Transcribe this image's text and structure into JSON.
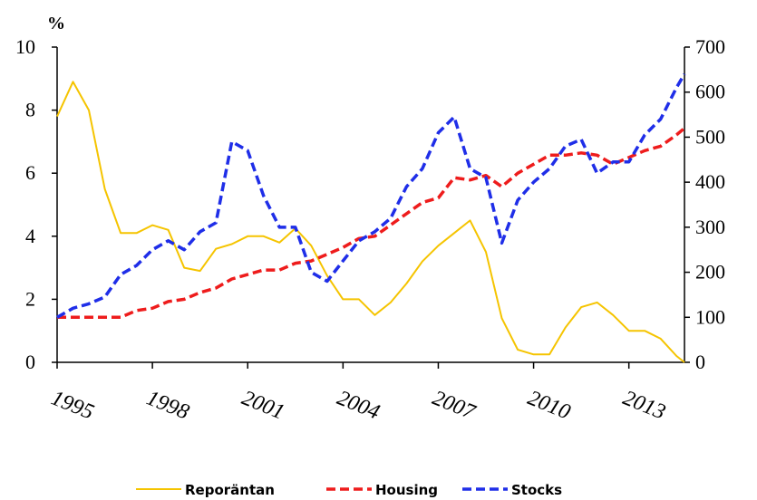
{
  "chart_data": {
    "type": "line",
    "ylabel": "%",
    "x": [
      1995,
      1995.5,
      1996,
      1996.5,
      1997,
      1997.5,
      1998,
      1998.5,
      1999,
      1999.5,
      2000,
      2000.5,
      2001,
      2001.5,
      2002,
      2002.5,
      2003,
      2003.5,
      2004,
      2004.5,
      2005,
      2005.5,
      2006,
      2006.5,
      2007,
      2007.5,
      2008,
      2008.5,
      2009,
      2009.5,
      2010,
      2010.5,
      2011,
      2011.5,
      2012,
      2012.5,
      2013,
      2013.5,
      2014,
      2014.5,
      2014.75
    ],
    "xlim": [
      1995,
      2014.75
    ],
    "xticks": [
      1995,
      1998,
      2001,
      2004,
      2007,
      2010,
      2013
    ],
    "ylim": [
      0,
      10
    ],
    "yticks": [
      0,
      2,
      4,
      6,
      8,
      10
    ],
    "y2lim": [
      0,
      700
    ],
    "y2ticks": [
      0,
      100,
      200,
      300,
      400,
      500,
      600,
      700
    ],
    "legend": "bottom",
    "series": [
      {
        "name": "Reporäntan",
        "color": "#f5c400",
        "style": "solid",
        "values": [
          7.8,
          8.9,
          8.0,
          5.5,
          4.1,
          4.1,
          4.35,
          4.2,
          3.0,
          2.9,
          3.6,
          3.75,
          4.0,
          4.0,
          3.8,
          4.25,
          3.7,
          2.75,
          2.0,
          2.0,
          1.5,
          1.9,
          2.5,
          3.2,
          3.7,
          4.1,
          4.5,
          3.5,
          1.4,
          0.4,
          0.25,
          0.25,
          1.1,
          1.75,
          1.9,
          1.5,
          1.0,
          1.0,
          0.75,
          0.2,
          0
        ]
      },
      {
        "name": "Housing",
        "color": "#ee1c1c",
        "style": "dashed",
        "axis": "y2",
        "values": [
          100,
          100,
          100,
          100,
          100,
          115,
          120,
          135,
          140,
          155,
          165,
          185,
          195,
          205,
          205,
          220,
          225,
          240,
          255,
          275,
          280,
          305,
          330,
          355,
          365,
          410,
          405,
          415,
          390,
          420,
          440,
          460,
          460,
          465,
          460,
          440,
          455,
          470,
          480,
          505,
          520
        ]
      },
      {
        "name": "Stocks",
        "color": "#1f2ee8",
        "style": "dashed",
        "axis": "y2",
        "values": [
          100,
          120,
          130,
          145,
          195,
          215,
          250,
          270,
          250,
          290,
          310,
          490,
          470,
          370,
          300,
          300,
          200,
          180,
          225,
          270,
          290,
          320,
          390,
          430,
          510,
          545,
          430,
          410,
          265,
          360,
          400,
          430,
          480,
          495,
          420,
          445,
          445,
          505,
          540,
          610,
          640
        ]
      }
    ]
  }
}
